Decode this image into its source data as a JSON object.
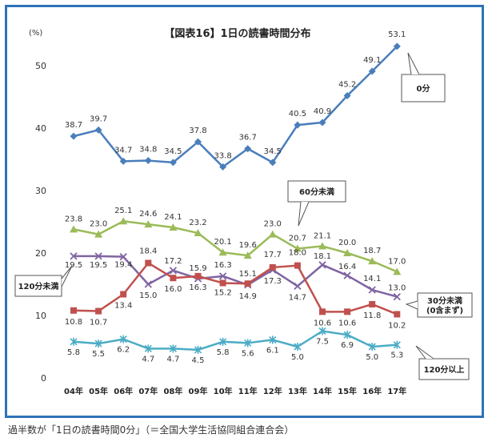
{
  "caption": "過半数が「1日の読書時間0分」（＝全国大学生活協同組合連合会）",
  "chart_data": {
    "type": "line",
    "title": "【図表16】1日の読書時間分布",
    "ylabel": "(%)",
    "ylim": [
      0,
      55
    ],
    "yticks": [
      0,
      10,
      20,
      30,
      40,
      50
    ],
    "categories": [
      "04年",
      "05年",
      "06年",
      "07年",
      "08年",
      "09年",
      "10年",
      "11年",
      "12年",
      "13年",
      "14年",
      "15年",
      "16年",
      "17年"
    ],
    "series": [
      {
        "name": "0分",
        "color": "#4a7ebb",
        "marker": "diamond",
        "label_pos": "above",
        "values": [
          38.7,
          39.7,
          34.7,
          34.8,
          34.5,
          37.8,
          33.8,
          36.7,
          34.5,
          40.5,
          40.9,
          45.2,
          49.1,
          53.1
        ],
        "labels": [
          "38.7",
          "39.7",
          "34.7",
          "34.8",
          "34.5",
          "37.8",
          "33.8",
          "36.7",
          "34.5",
          "40.5",
          "40.9",
          "45.2",
          "49.1",
          "53.1"
        ]
      },
      {
        "name": "60分未満",
        "color": "#9bbb59",
        "marker": "triangle",
        "label_pos": "above",
        "values": [
          23.8,
          23.0,
          25.1,
          24.6,
          24.1,
          23.2,
          20.1,
          19.6,
          23.0,
          20.7,
          21.1,
          20.0,
          18.7,
          17.0
        ],
        "labels": [
          "23.8",
          "23.0",
          "25.1",
          "24.6",
          "24.1",
          "23.2",
          "20.1",
          "19.6",
          "23.0",
          "20.7",
          "21.1",
          "20.0",
          "18.7",
          "17.0"
        ]
      },
      {
        "name": "120分未満",
        "color": "#8064a2",
        "marker": "x",
        "values": [
          19.5,
          19.5,
          19.4,
          15.0,
          17.2,
          15.9,
          16.3,
          14.9,
          17.3,
          14.7,
          18.1,
          16.4,
          14.1,
          13.0
        ],
        "labels": [
          "19.5",
          "19.5",
          "19.4",
          "15.0",
          "17.2",
          "15.9",
          "16.3",
          "14.9",
          "17.3",
          "14.7",
          "18.1",
          "16.4",
          "14.1",
          "13.0"
        ]
      },
      {
        "name": "30分未満\n(0含まず)",
        "color": "#c0504d",
        "marker": "square",
        "values": [
          10.8,
          10.7,
          13.4,
          18.4,
          16.0,
          16.3,
          15.2,
          15.1,
          17.7,
          18.0,
          10.6,
          10.6,
          11.8,
          10.2
        ],
        "labels": [
          "10.8",
          "10.7",
          "13.4",
          "18.4",
          "16.0",
          "16.3",
          "15.2",
          "15.1",
          "17.7",
          "18.0",
          "10.6",
          "10.6",
          "11.8",
          "10.2"
        ]
      },
      {
        "name": "120分以上",
        "color": "#4bacc6",
        "marker": "star",
        "label_pos": "below",
        "values": [
          5.8,
          5.5,
          6.2,
          4.7,
          4.7,
          4.5,
          5.8,
          5.6,
          6.1,
          5.0,
          7.5,
          6.9,
          5.0,
          5.3
        ],
        "labels": [
          "5.8",
          "5.5",
          "6.2",
          "4.7",
          "4.7",
          "4.5",
          "5.8",
          "5.6",
          "6.1",
          "5.0",
          "7.5",
          "6.9",
          "5.0",
          "5.3"
        ]
      }
    ],
    "grid": false,
    "legend": "callouts"
  }
}
